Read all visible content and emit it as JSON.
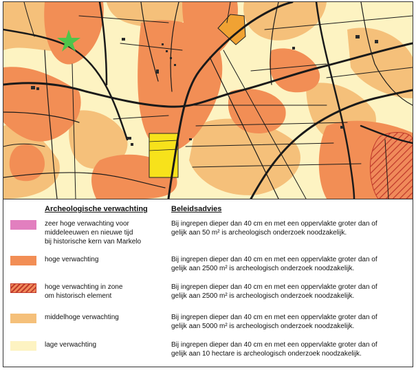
{
  "map": {
    "colors": {
      "zeer_hoog": "#e27fbf",
      "hoog": "#f28e55",
      "hoog_zone": "#f08a5a",
      "hoog_zone_hatch": "#c0392b",
      "middelhoog": "#f5c07a",
      "laag": "#fdf3c2",
      "roads": "#1a1a1a",
      "yellow_feature": "#f7e21b",
      "orange_feature": "#f0a233",
      "star": "#4fc44a"
    },
    "icons": [
      "star-icon"
    ]
  },
  "legend": {
    "col1_header": "Archeologische verwachting",
    "col2_header": "Beleidsadvies",
    "rows": [
      {
        "label": "zeer hoge verwachting voor\nmiddeleeuwen en nieuwe tijd\nbij historische kern van Markelo",
        "advice": "Bij ingrepen dieper dan 40 cm en met een oppervlakte groter dan of\ngelijk aan 50 m² is archeologisch onderzoek noodzakelijk.",
        "color": "#e27fbf",
        "hatched": false
      },
      {
        "label": "hoge verwachting",
        "advice": "Bij ingrepen dieper dan 40 cm en met een oppervlakte groter dan of\ngelijk aan 2500 m² is archeologisch onderzoek noodzakelijk.",
        "color": "#f28e55",
        "hatched": false
      },
      {
        "label": "hoge verwachting in zone\nom historisch element",
        "advice": "Bij ingrepen dieper dan 40 cm en met een oppervlakte groter dan of\ngelijk aan 2500 m² is archeologisch onderzoek noodzakelijk.",
        "color": "#f08a5a",
        "hatched": true
      },
      {
        "label": "middelhoge verwachting",
        "advice": "Bij ingrepen dieper dan 40 cm en met een oppervlakte groter dan of\n gelijk aan 5000 m² is archeologisch onderzoek noodzakelijk.",
        "color": "#f5c07a",
        "hatched": false
      },
      {
        "label": "lage verwachting",
        "advice": "Bij ingrepen dieper dan 40 cm en met een oppervlakte groter dan of\ngelijk aan 10 hectare is archeologisch onderzoek noodzakelijk.",
        "color": "#fdf3c2",
        "hatched": false
      }
    ]
  }
}
